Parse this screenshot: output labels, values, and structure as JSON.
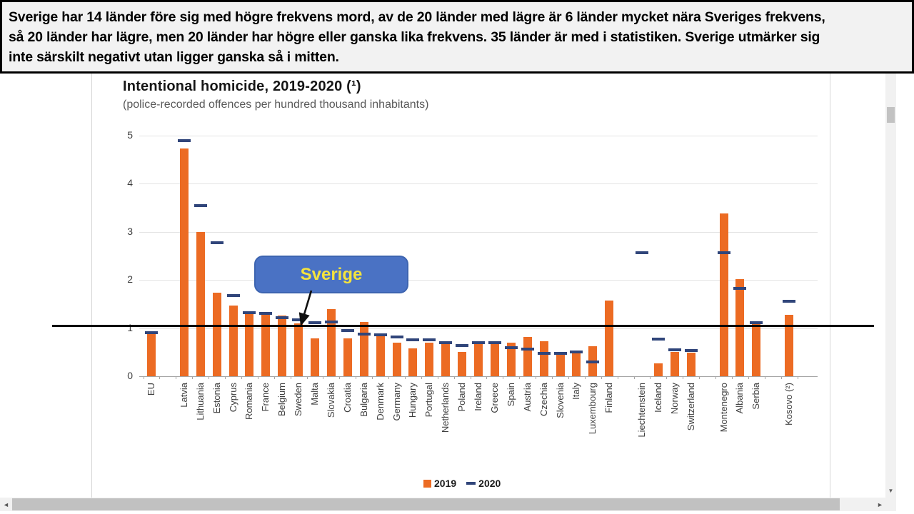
{
  "banner": {
    "line1": "Sverige har 14 länder före sig med högre frekvens mord, av de 20 länder med lägre är 6 länder mycket nära Sveriges frekvens,",
    "line2": "så 20 länder har lägre, men 20 länder har högre eller ganska lika frekvens. 35 länder är med i statistiken. Sverige utmärker sig",
    "line3": "inte särskilt negativt utan ligger ganska så i mitten."
  },
  "chart_data": {
    "type": "bar",
    "title": "Intentional homicide, 2019-2020 (¹)",
    "subtitle": "(police-recorded offences per hundred thousand inhabitants)",
    "xlabel": "",
    "ylabel": "",
    "ylim": [
      0,
      5
    ],
    "yticks": [
      0,
      1,
      2,
      3,
      4,
      5
    ],
    "grid": true,
    "legend": [
      "2019",
      "2020"
    ],
    "legend_position": "bottom",
    "categories": [
      "EU",
      "",
      "Latvia",
      "Lithuania",
      "Estonia",
      "Cyprus",
      "Romania",
      "France",
      "Belgium",
      "Sweden",
      "Malta",
      "Slovakia",
      "Croatia",
      "Bulgaria",
      "Denmark",
      "Germany",
      "Hungary",
      "Portugal",
      "Netherlands",
      "Poland",
      "Ireland",
      "Greece",
      "Spain",
      "Austria",
      "Czechia",
      "Slovenia",
      "Italy",
      "Luxembourg",
      "Finland",
      "",
      "Liechtenstein",
      "Iceland",
      "Norway",
      "Switzerland",
      "",
      "Montenegro",
      "Albania",
      "Serbia",
      "",
      "Kosovo (²)"
    ],
    "series": [
      {
        "name": "2019",
        "mark": "bar",
        "color": "#EC6B23",
        "values": [
          0.87,
          null,
          4.74,
          3.0,
          1.73,
          1.47,
          1.31,
          1.28,
          1.26,
          1.1,
          0.78,
          1.39,
          0.78,
          1.13,
          0.87,
          0.7,
          0.58,
          0.7,
          0.7,
          0.51,
          0.69,
          0.69,
          0.69,
          0.82,
          0.72,
          0.49,
          0.53,
          0.63,
          1.58,
          null,
          null,
          0.27,
          0.51,
          0.49,
          null,
          3.38,
          2.02,
          1.13,
          null,
          1.28
        ]
      },
      {
        "name": "2020",
        "mark": "dash",
        "color": "#30457A",
        "values": [
          0.9,
          null,
          4.9,
          3.55,
          2.77,
          1.68,
          1.32,
          1.3,
          1.22,
          1.17,
          1.12,
          1.13,
          0.95,
          0.88,
          0.86,
          0.82,
          0.76,
          0.75,
          0.69,
          0.64,
          0.7,
          0.69,
          0.59,
          0.57,
          0.48,
          0.48,
          0.51,
          0.3,
          null,
          null,
          2.56,
          0.77,
          0.55,
          0.53,
          null,
          2.57,
          1.83,
          1.12,
          null,
          1.56
        ]
      }
    ]
  },
  "annotations": {
    "callout_label": "Sverige",
    "callout_fill": "#4A72C4",
    "callout_border": "#3D64B0",
    "callout_text_color": "#F4E33D",
    "hline_value": 1.05,
    "hline_color": "#000000"
  },
  "icons": {
    "scroll_down": "▼",
    "scroll_left": "◄",
    "scroll_right": "►"
  }
}
